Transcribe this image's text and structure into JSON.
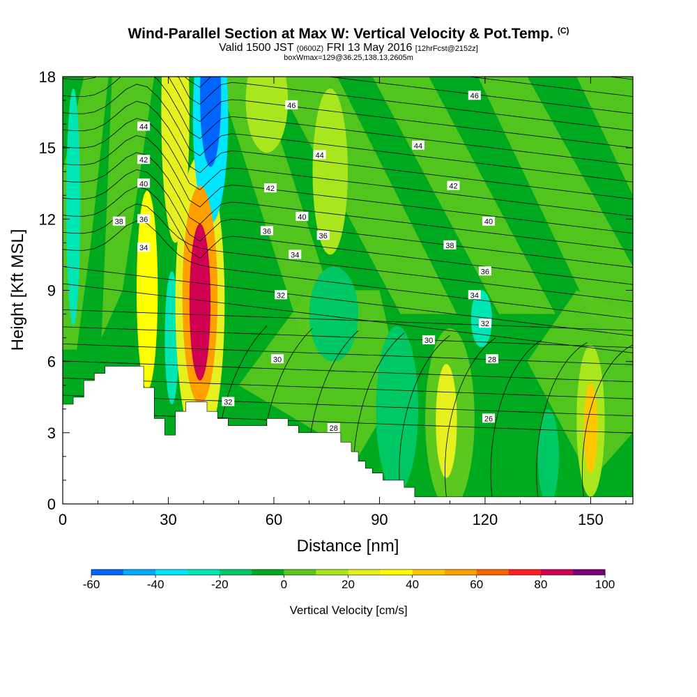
{
  "title": {
    "main": "Wind-Parallel Section at Max W: Vertical Velocity & Pot.Temp.",
    "copyright": "(C)",
    "valid_prefix": "Valid 1500 JST",
    "valid_utc": "(0600Z)",
    "valid_date": "FRI 13 May 2016",
    "forecast": "[12hrFcst@2152z]",
    "boxinfo": "boxWmax=129@36.25,138.13,2605m"
  },
  "chart_data": {
    "type": "heatmap",
    "xlabel": "Distance [nm]",
    "ylabel": "Height [Kft MSL]",
    "xlim": [
      0,
      162
    ],
    "ylim": [
      0,
      18
    ],
    "x_ticks": [
      "0",
      "30",
      "60",
      "90",
      "120",
      "150"
    ],
    "y_ticks": [
      "0",
      "3",
      "6",
      "9",
      "12",
      "15",
      "18"
    ],
    "colorbar": {
      "label": "Vertical Velocity [cm/s]",
      "ticks": [
        "-60",
        "-40",
        "-20",
        "0",
        "20",
        "40",
        "60",
        "80",
        "100"
      ],
      "levels": [
        -60,
        -50,
        -40,
        -30,
        -20,
        -10,
        0,
        10,
        20,
        30,
        40,
        50,
        60,
        70,
        80,
        90,
        100
      ],
      "colors": [
        "#0014f5",
        "#0064ff",
        "#00aaff",
        "#00e6ff",
        "#00e6b4",
        "#00c864",
        "#00aa1e",
        "#5ac81e",
        "#aae61e",
        "#e6f01e",
        "#ffff00",
        "#ffc800",
        "#ffa000",
        "#ff6400",
        "#ff1e1e",
        "#d20050",
        "#780078"
      ]
    },
    "terrain": [
      [
        0,
        4.2
      ],
      [
        3,
        4.2
      ],
      [
        3,
        4.5
      ],
      [
        6,
        4.5
      ],
      [
        6,
        5.2
      ],
      [
        9,
        5.2
      ],
      [
        9,
        5.5
      ],
      [
        12,
        5.5
      ],
      [
        12,
        5.8
      ],
      [
        23,
        5.8
      ],
      [
        23,
        4.9
      ],
      [
        26,
        4.9
      ],
      [
        26,
        3.6
      ],
      [
        29,
        3.6
      ],
      [
        29,
        2.9
      ],
      [
        32,
        2.9
      ],
      [
        32,
        3.9
      ],
      [
        35,
        3.9
      ],
      [
        35,
        4.3
      ],
      [
        41,
        4.3
      ],
      [
        41,
        3.9
      ],
      [
        44,
        3.9
      ],
      [
        44,
        3.6
      ],
      [
        47,
        3.6
      ],
      [
        47,
        3.3
      ],
      [
        58,
        3.3
      ],
      [
        58,
        3.6
      ],
      [
        64,
        3.6
      ],
      [
        64,
        3.3
      ],
      [
        67,
        3.3
      ],
      [
        67,
        3.0
      ],
      [
        79,
        3.0
      ],
      [
        79,
        2.6
      ],
      [
        82,
        2.6
      ],
      [
        82,
        2.2
      ],
      [
        84,
        2.2
      ],
      [
        84,
        1.8
      ],
      [
        86,
        1.8
      ],
      [
        86,
        1.5
      ],
      [
        88,
        1.5
      ],
      [
        88,
        1.3
      ],
      [
        91,
        1.3
      ],
      [
        91,
        1.0
      ],
      [
        97,
        1.0
      ],
      [
        97,
        0.7
      ],
      [
        100,
        0.7
      ],
      [
        100,
        0.3
      ],
      [
        162,
        0.3
      ]
    ],
    "w_cells": [
      {
        "x": 39,
        "y": 8.5,
        "rx": 3,
        "ry": 3.3,
        "w": 90
      },
      {
        "x": 39,
        "y": 8.8,
        "rx": 5,
        "ry": 4.6,
        "w": 60
      },
      {
        "x": 39,
        "y": 8.5,
        "rx": 7,
        "ry": 6.2,
        "w": 30
      },
      {
        "x": 24,
        "y": 9.0,
        "rx": 3,
        "ry": 4.2,
        "w": 40
      },
      {
        "x": 150,
        "y": 3.2,
        "rx": 2,
        "ry": 1.9,
        "w": 50
      },
      {
        "x": 150,
        "y": 3.5,
        "rx": 4,
        "ry": 3.2,
        "w": 20
      },
      {
        "x": 109,
        "y": 3.5,
        "rx": 3,
        "ry": 2.4,
        "w": 30
      },
      {
        "x": 110,
        "y": 3.6,
        "rx": 7,
        "ry": 3.8,
        "w": 10
      },
      {
        "x": 32,
        "y": 16.5,
        "rx": 4,
        "ry": 5.5,
        "w": 30
      },
      {
        "x": 76,
        "y": 14.0,
        "rx": 5,
        "ry": 3.5,
        "w": 20
      },
      {
        "x": 58,
        "y": 17.0,
        "rx": 6,
        "ry": 2.2,
        "w": 20
      },
      {
        "x": 42,
        "y": 17.2,
        "rx": 3,
        "ry": 3.0,
        "w": -50
      },
      {
        "x": 42,
        "y": 16.3,
        "rx": 5,
        "ry": 4.5,
        "w": -30
      },
      {
        "x": 31,
        "y": 7.0,
        "rx": 2,
        "ry": 2.8,
        "w": -20
      },
      {
        "x": 3,
        "y": 12.5,
        "rx": 2,
        "ry": 5.0,
        "w": -20
      },
      {
        "x": 119,
        "y": 7.8,
        "rx": 3,
        "ry": 1.2,
        "w": -20
      },
      {
        "x": 95,
        "y": 4.0,
        "rx": 6,
        "ry": 3.5,
        "w": -10
      },
      {
        "x": 77,
        "y": 8.0,
        "rx": 7,
        "ry": 2.0,
        "w": -10
      },
      {
        "x": 138,
        "y": 2.0,
        "rx": 3,
        "ry": 2.0,
        "w": -10
      }
    ],
    "theta_labels": [
      {
        "text": "46",
        "x": 65,
        "y": 16.8
      },
      {
        "text": "46",
        "x": 117,
        "y": 17.2
      },
      {
        "text": "44",
        "x": 23,
        "y": 15.9
      },
      {
        "text": "44",
        "x": 73,
        "y": 14.7
      },
      {
        "text": "44",
        "x": 101,
        "y": 15.1
      },
      {
        "text": "42",
        "x": 23,
        "y": 14.5
      },
      {
        "text": "42",
        "x": 59,
        "y": 13.3
      },
      {
        "text": "42",
        "x": 111,
        "y": 13.4
      },
      {
        "text": "40",
        "x": 23,
        "y": 13.5
      },
      {
        "text": "40",
        "x": 68,
        "y": 12.1
      },
      {
        "text": "40",
        "x": 121,
        "y": 11.9
      },
      {
        "text": "38",
        "x": 16,
        "y": 11.9
      },
      {
        "text": "38",
        "x": 110,
        "y": 10.9
      },
      {
        "text": "36",
        "x": 23,
        "y": 12.0
      },
      {
        "text": "36",
        "x": 58,
        "y": 11.5
      },
      {
        "text": "36",
        "x": 74,
        "y": 11.3
      },
      {
        "text": "36",
        "x": 120,
        "y": 9.8
      },
      {
        "text": "34",
        "x": 23,
        "y": 10.8
      },
      {
        "text": "34",
        "x": 66,
        "y": 10.5
      },
      {
        "text": "34",
        "x": 117,
        "y": 8.8
      },
      {
        "text": "32",
        "x": 62,
        "y": 8.8
      },
      {
        "text": "32",
        "x": 120,
        "y": 7.6
      },
      {
        "text": "32",
        "x": 47,
        "y": 4.3
      },
      {
        "text": "30",
        "x": 104,
        "y": 6.9
      },
      {
        "text": "30",
        "x": 61,
        "y": 6.1
      },
      {
        "text": "28",
        "x": 122,
        "y": 6.1
      },
      {
        "text": "28",
        "x": 77,
        "y": 3.2
      },
      {
        "text": "26",
        "x": 121,
        "y": 3.6
      }
    ]
  }
}
